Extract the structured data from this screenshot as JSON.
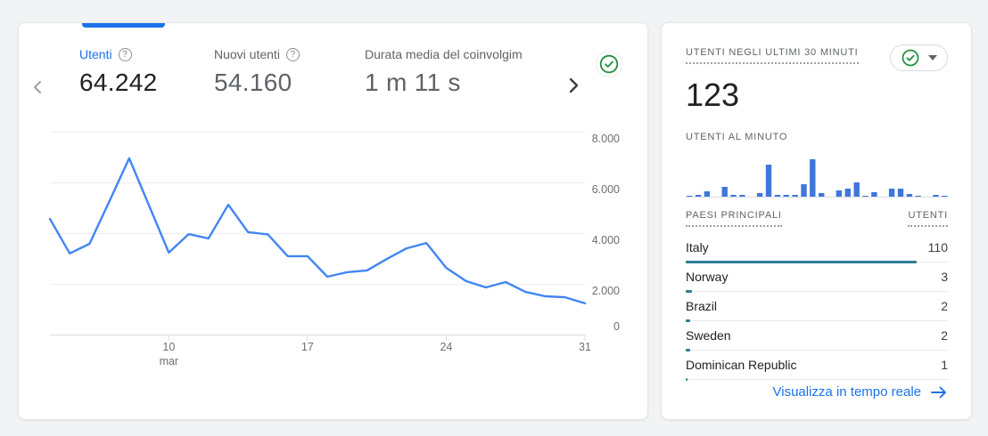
{
  "left_card": {
    "tabs": [
      {
        "label": "Utenti",
        "value": "64.242",
        "active": true
      },
      {
        "label": "Nuovi utenti",
        "value": "54.160",
        "active": false
      },
      {
        "label": "Durata media del coinvolgim",
        "value": "1 m 11 s",
        "active": false
      }
    ],
    "help_icon": "?",
    "accent_color": "#1a73e8"
  },
  "right_card": {
    "title": "UTENTI NEGLI ULTIMI 30 MINUTI",
    "value": "123",
    "minute_label": "UTENTI AL MINUTO",
    "table_headers": {
      "country": "PAESI PRINCIPALI",
      "users": "UTENTI"
    },
    "countries": [
      {
        "name": "Italy",
        "users": 110
      },
      {
        "name": "Norway",
        "users": 3
      },
      {
        "name": "Brazil",
        "users": 2
      },
      {
        "name": "Sweden",
        "users": 2
      },
      {
        "name": "Dominican Republic",
        "users": 1
      }
    ],
    "link_label": "Visualizza in tempo reale"
  },
  "chart_data": [
    {
      "type": "line",
      "title": "Utenti per giorno (marzo)",
      "x": [
        4,
        5,
        6,
        7,
        8,
        9,
        10,
        11,
        12,
        13,
        14,
        15,
        16,
        17,
        18,
        19,
        20,
        21,
        22,
        23,
        24,
        25,
        26,
        27,
        28,
        29,
        30,
        31
      ],
      "values": [
        4560,
        3200,
        3580,
        5260,
        6950,
        5090,
        3230,
        3960,
        3790,
        5120,
        4040,
        3950,
        3090,
        3090,
        2280,
        2460,
        2530,
        2980,
        3400,
        3610,
        2630,
        2110,
        1860,
        2070,
        1680,
        1510,
        1470,
        1230
      ],
      "x_tick_days": [
        10,
        17,
        24,
        31
      ],
      "x_tick_labels": [
        "10",
        "17",
        "24",
        "31"
      ],
      "x_month_label": "mar",
      "y_tick_labels": [
        "8.000",
        "6.000",
        "4.000",
        "2.000",
        "0"
      ],
      "ylim": [
        0,
        8000
      ],
      "grid": true,
      "line_color": "#4285f4"
    },
    {
      "type": "bar",
      "title": "Utenti al minuto (ultimi 30 minuti)",
      "values": [
        1,
        2,
        6,
        0,
        11,
        2,
        2,
        0,
        4,
        36,
        2,
        2,
        2,
        14,
        42,
        4,
        0,
        7,
        9,
        16,
        1,
        5,
        0,
        9,
        9,
        3,
        1,
        0,
        2,
        1
      ],
      "ylim": [
        0,
        46
      ],
      "bar_color": "#3e77d9",
      "note": "relative heights, unlabeled axis"
    },
    {
      "type": "table",
      "title": "Paesi principali",
      "columns": [
        "PAESI PRINCIPALI",
        "UTENTI"
      ],
      "rows": [
        [
          "Italy",
          110
        ],
        [
          "Norway",
          3
        ],
        [
          "Brazil",
          2
        ],
        [
          "Sweden",
          2
        ],
        [
          "Dominican Republic",
          1
        ]
      ],
      "bar_color": "#2f7d95"
    }
  ],
  "colors": {
    "background": "#f1f3f4",
    "accent_blue": "#1a73e8",
    "line_blue": "#4285f4",
    "bar_blue": "#3e77d9",
    "country_bar_teal": "#2f7d95",
    "green_check": "#1e8e3e",
    "text_dark": "#202124",
    "text_gray": "#5f6368"
  }
}
